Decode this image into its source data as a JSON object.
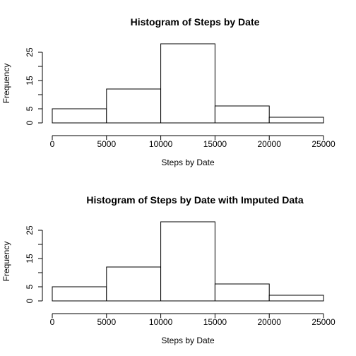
{
  "chart_data": [
    {
      "type": "bar",
      "title": "Histogram of Steps by Date",
      "xlabel": "Steps by Date",
      "ylabel": "Frequency",
      "bins": [
        {
          "start": 0,
          "end": 5000,
          "count": 5
        },
        {
          "start": 5000,
          "end": 10000,
          "count": 12
        },
        {
          "start": 10000,
          "end": 15000,
          "count": 28
        },
        {
          "start": 15000,
          "end": 20000,
          "count": 6
        },
        {
          "start": 20000,
          "end": 25000,
          "count": 2
        }
      ],
      "xticks": [
        "0",
        "5000",
        "10000",
        "15000",
        "20000",
        "25000"
      ],
      "yticks": [
        "0",
        "5",
        "15",
        "25"
      ],
      "xlim": [
        0,
        25000
      ],
      "ylim": [
        0,
        28
      ],
      "grid": false,
      "bar_fill": "#ffffff",
      "bar_stroke": "#000000"
    },
    {
      "type": "bar",
      "title": "Histogram of Steps by Date with Imputed Data",
      "xlabel": "Steps by Date",
      "ylabel": "Frequency",
      "bins": [
        {
          "start": 0,
          "end": 5000,
          "count": 5
        },
        {
          "start": 5000,
          "end": 10000,
          "count": 12
        },
        {
          "start": 10000,
          "end": 15000,
          "count": 28
        },
        {
          "start": 15000,
          "end": 20000,
          "count": 6
        },
        {
          "start": 20000,
          "end": 25000,
          "count": 2
        }
      ],
      "xticks": [
        "0",
        "5000",
        "10000",
        "15000",
        "20000",
        "25000"
      ],
      "yticks": [
        "0",
        "5",
        "15",
        "25"
      ],
      "xlim": [
        0,
        25000
      ],
      "ylim": [
        0,
        28
      ],
      "grid": false,
      "bar_fill": "#ffffff",
      "bar_stroke": "#000000"
    }
  ]
}
